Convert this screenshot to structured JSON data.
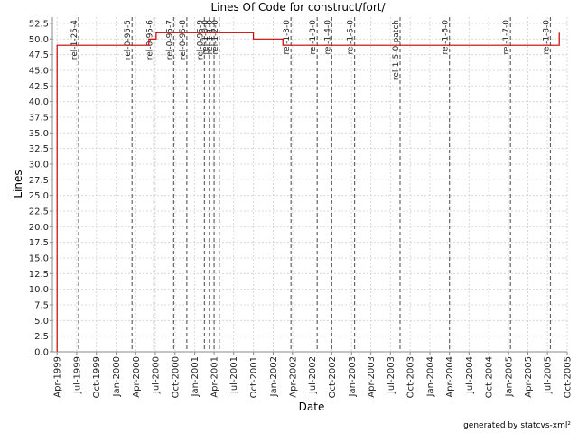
{
  "chart_data": {
    "type": "line",
    "title": "Lines Of Code for construct/fort/",
    "xlabel": "Date",
    "ylabel": "Lines",
    "ylim": [
      0,
      53.5
    ],
    "xlim": [
      "1999-03-10",
      "2005-10-01"
    ],
    "yticks": [
      "0.0",
      "2.5",
      "5.0",
      "7.5",
      "10.0",
      "12.5",
      "15.0",
      "17.5",
      "20.0",
      "22.5",
      "25.0",
      "27.5",
      "30.0",
      "32.5",
      "35.0",
      "37.5",
      "40.0",
      "42.5",
      "45.0",
      "47.5",
      "50.0",
      "52.5"
    ],
    "xticks": [
      {
        "label": "Apr-1999",
        "date": "1999-04-01"
      },
      {
        "label": "Jul-1999",
        "date": "1999-07-01"
      },
      {
        "label": "Oct-1999",
        "date": "1999-10-01"
      },
      {
        "label": "Jan-2000",
        "date": "2000-01-01"
      },
      {
        "label": "Apr-2000",
        "date": "2000-04-01"
      },
      {
        "label": "Jul-2000",
        "date": "2000-07-01"
      },
      {
        "label": "Oct-2000",
        "date": "2000-10-01"
      },
      {
        "label": "Jan-2001",
        "date": "2001-01-01"
      },
      {
        "label": "Apr-2001",
        "date": "2001-04-01"
      },
      {
        "label": "Jul-2001",
        "date": "2001-07-01"
      },
      {
        "label": "Oct-2001",
        "date": "2001-10-01"
      },
      {
        "label": "Jan-2002",
        "date": "2002-01-01"
      },
      {
        "label": "Apr-2002",
        "date": "2002-04-01"
      },
      {
        "label": "Jul-2002",
        "date": "2002-07-01"
      },
      {
        "label": "Oct-2002",
        "date": "2002-10-01"
      },
      {
        "label": "Jan-2003",
        "date": "2003-01-01"
      },
      {
        "label": "Apr-2003",
        "date": "2003-04-01"
      },
      {
        "label": "Jul-2003",
        "date": "2003-07-01"
      },
      {
        "label": "Oct-2003",
        "date": "2003-10-01"
      },
      {
        "label": "Jan-2004",
        "date": "2004-01-01"
      },
      {
        "label": "Apr-2004",
        "date": "2004-04-01"
      },
      {
        "label": "Jul-2004",
        "date": "2004-07-01"
      },
      {
        "label": "Oct-2004",
        "date": "2004-10-01"
      },
      {
        "label": "Jan-2005",
        "date": "2005-01-01"
      },
      {
        "label": "Apr-2005",
        "date": "2005-04-01"
      },
      {
        "label": "Jul-2005",
        "date": "2005-07-01"
      },
      {
        "label": "Oct-2005",
        "date": "2005-10-01"
      }
    ],
    "grid": true,
    "line_color": "#cc0000",
    "marker_color": "#666666",
    "series": [
      {
        "points": [
          {
            "date": "1999-04-01",
            "lines": 0
          },
          {
            "date": "1999-04-01",
            "lines": 49
          },
          {
            "date": "2000-06-01",
            "lines": 49
          },
          {
            "date": "2000-06-01",
            "lines": 50
          },
          {
            "date": "2000-07-05",
            "lines": 50
          },
          {
            "date": "2000-07-05",
            "lines": 51
          },
          {
            "date": "2001-10-01",
            "lines": 51
          },
          {
            "date": "2001-10-01",
            "lines": 50
          },
          {
            "date": "2002-02-15",
            "lines": 50
          },
          {
            "date": "2002-02-15",
            "lines": 49
          },
          {
            "date": "2005-08-25",
            "lines": 49
          },
          {
            "date": "2005-08-25",
            "lines": 51
          }
        ]
      }
    ],
    "tags": [
      {
        "label": "rel-1-25-4",
        "date": "1999-07-10"
      },
      {
        "label": "rel-0-95-5",
        "date": "2000-03-15"
      },
      {
        "label": "rel-0-95-6",
        "date": "2000-06-25"
      },
      {
        "label": "rel-0-95-7",
        "date": "2000-09-25"
      },
      {
        "label": "rel-0-95-8",
        "date": "2000-11-25"
      },
      {
        "label": "rel-0-95-9",
        "date": "2001-02-15"
      },
      {
        "label": "rel-1-0-0",
        "date": "2001-03-10"
      },
      {
        "label": "rel-1-1-0",
        "date": "2001-04-01"
      },
      {
        "label": "rel-1-2-0",
        "date": "2001-04-25"
      },
      {
        "label": "rel-1-3-0",
        "date": "2002-03-25"
      },
      {
        "label": "rel-1-3-0",
        "date": "2002-07-25"
      },
      {
        "label": "rel-1-4-0",
        "date": "2002-10-01"
      },
      {
        "label": "rel-1-5-0",
        "date": "2003-01-15"
      },
      {
        "label": "rel-1-5-0-patch",
        "date": "2003-08-15"
      },
      {
        "label": "rel-1-6-0",
        "date": "2004-04-01"
      },
      {
        "label": "rel-1-7-0",
        "date": "2005-01-10"
      },
      {
        "label": "rel-1-8-0",
        "date": "2005-07-15"
      }
    ],
    "footer": "generated by statcvs-xml²"
  }
}
